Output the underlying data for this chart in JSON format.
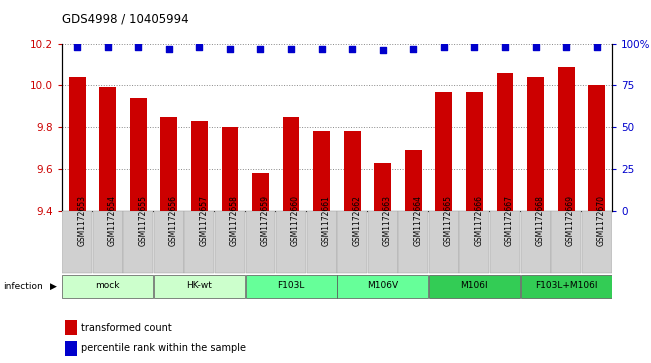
{
  "title": "GDS4998 / 10405994",
  "samples": [
    "GSM1172653",
    "GSM1172654",
    "GSM1172655",
    "GSM1172656",
    "GSM1172657",
    "GSM1172658",
    "GSM1172659",
    "GSM1172660",
    "GSM1172661",
    "GSM1172662",
    "GSM1172663",
    "GSM1172664",
    "GSM1172665",
    "GSM1172666",
    "GSM1172667",
    "GSM1172668",
    "GSM1172669",
    "GSM1172670"
  ],
  "bar_values": [
    10.04,
    9.99,
    9.94,
    9.85,
    9.83,
    9.8,
    9.58,
    9.85,
    9.78,
    9.78,
    9.63,
    9.69,
    9.97,
    9.97,
    10.06,
    10.04,
    10.09,
    10.0
  ],
  "percentile_values": [
    98,
    98,
    98,
    97,
    98,
    97,
    97,
    97,
    97,
    97,
    96,
    97,
    98,
    98,
    98,
    98,
    98,
    98
  ],
  "ylim_left": [
    9.4,
    10.2
  ],
  "ylim_right": [
    0,
    100
  ],
  "yticks_left": [
    9.4,
    9.6,
    9.8,
    10.0,
    10.2
  ],
  "yticks_right": [
    0,
    25,
    50,
    75,
    100
  ],
  "bar_color": "#cc0000",
  "dot_color": "#0000cc",
  "groups": [
    {
      "label": "mock",
      "start": 0,
      "count": 3,
      "color": "#ccffcc"
    },
    {
      "label": "HK-wt",
      "start": 3,
      "count": 3,
      "color": "#ccffcc"
    },
    {
      "label": "F103L",
      "start": 6,
      "count": 3,
      "color": "#66ff99"
    },
    {
      "label": "M106V",
      "start": 9,
      "count": 3,
      "color": "#66ff99"
    },
    {
      "label": "M106I",
      "start": 12,
      "count": 3,
      "color": "#33cc55"
    },
    {
      "label": "F103L+M106I",
      "start": 15,
      "count": 3,
      "color": "#33cc55"
    }
  ],
  "infection_label": "infection",
  "legend_bar_label": "transformed count",
  "legend_dot_label": "percentile rank within the sample",
  "bar_color_legend": "#cc0000",
  "dot_color_legend": "#0000cc",
  "left_tick_color": "#cc0000",
  "right_tick_color": "#0000cc",
  "bar_width": 0.55,
  "xlim": [
    -0.5,
    17.5
  ]
}
